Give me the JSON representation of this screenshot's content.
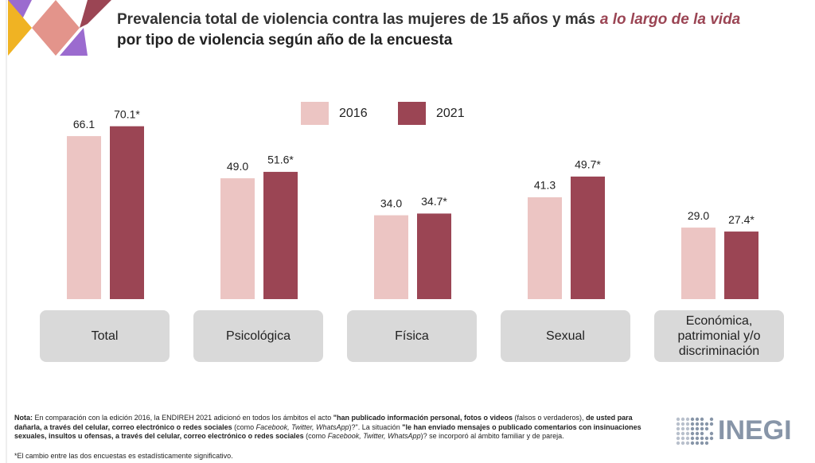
{
  "chart_data": {
    "type": "bar",
    "title": "Prevalencia total de violencia contra las mujeres de 15 años y más",
    "title_emphasis": "a lo largo de la vida",
    "title_line2": "por tipo de violencia según año de la encuesta",
    "categories": [
      "Total",
      "Psicológica",
      "Física",
      "Sexual",
      "Económica, patrimonial y/o discriminación"
    ],
    "series": [
      {
        "name": "2016",
        "color": "#ecc5c3",
        "values": [
          66.1,
          49.0,
          34.0,
          41.3,
          29.0
        ],
        "value_labels": [
          "66.1",
          "49.0",
          "34.0",
          "41.3",
          "29.0"
        ]
      },
      {
        "name": "2021",
        "color": "#9b4554",
        "values": [
          70.1,
          51.6,
          34.7,
          49.7,
          27.4
        ],
        "value_labels": [
          "70.1*",
          "51.6*",
          "34.7*",
          "49.7*",
          "27.4*"
        ]
      }
    ],
    "note": [
      {
        "text": "Nota:",
        "style": "bold"
      },
      {
        "text": " En comparación con la edición 2016, la ENDIREH 2021 adicionó en todos los ámbitos el acto ",
        "style": "normal"
      },
      {
        "text": "\"han publicado información personal, fotos o videos",
        "style": "bold"
      },
      {
        "text": " (falsos o verdaderos), ",
        "style": "normal"
      },
      {
        "text": "de usted para dañarla, a través del celular, correo electrónico o redes sociales",
        "style": "bold"
      },
      {
        "text": " (como ",
        "style": "normal"
      },
      {
        "text": "Facebook, Twitter, WhatsApp",
        "style": "italic"
      },
      {
        "text": ")?\". La situación ",
        "style": "normal"
      },
      {
        "text": "\"le han enviado mensajes o publicado comentarios con insinuaciones sexuales, insultos u ofensas, a través del celular, correo electrónico o redes sociales",
        "style": "bold"
      },
      {
        "text": " (como ",
        "style": "normal"
      },
      {
        "text": "Facebook, Twitter, WhatsApp",
        "style": "italic"
      },
      {
        "text": ")? se incorporó al ámbito familiar y de pareja.",
        "style": "normal"
      }
    ],
    "footnote": "*El cambio entre las dos encuestas es estadísticamente significativo.",
    "logo": "INEGI"
  }
}
